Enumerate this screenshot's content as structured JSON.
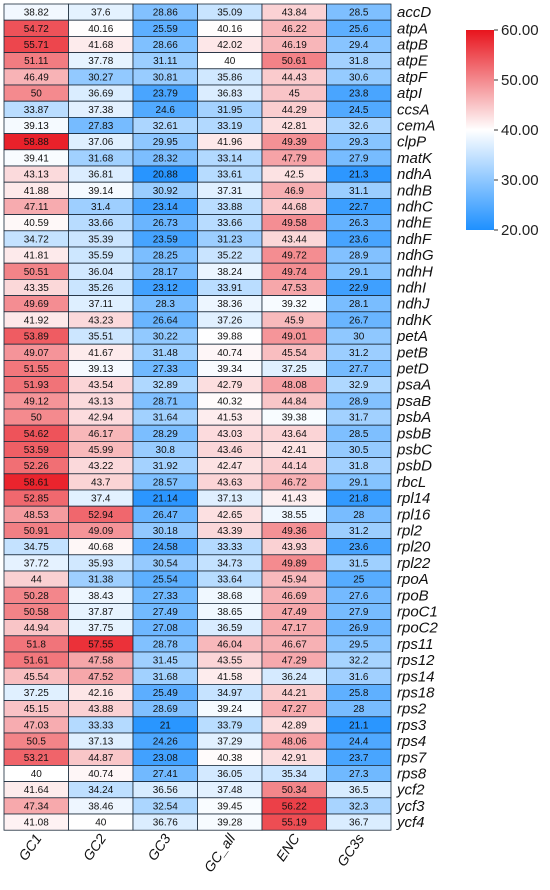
{
  "chart_data": {
    "type": "heatmap",
    "columns": [
      "GC1",
      "GC2",
      "GC3",
      "GC_all",
      "ENC",
      "GC3s"
    ],
    "rows": [
      "accD",
      "atpA",
      "atpB",
      "atpE",
      "atpF",
      "atpI",
      "ccsA",
      "cemA",
      "clpP",
      "matK",
      "ndhA",
      "ndhB",
      "ndhC",
      "ndhE",
      "ndhF",
      "ndhG",
      "ndhH",
      "ndhI",
      "ndhJ",
      "ndhK",
      "petA",
      "petB",
      "petD",
      "psaA",
      "psaB",
      "psbA",
      "psbB",
      "psbC",
      "psbD",
      "rbcL",
      "rpl14",
      "rpl16",
      "rpl2",
      "rpl20",
      "rpl22",
      "rpoA",
      "rpoB",
      "rpoC1",
      "rpoC2",
      "rps11",
      "rps12",
      "rps14",
      "rps18",
      "rps2",
      "rps3",
      "rps4",
      "rps7",
      "rps8",
      "ycf2",
      "ycf3",
      "ycf4"
    ],
    "values": [
      [
        "38.82",
        "37.6",
        "28.86",
        "35.09",
        "43.84",
        "28.5"
      ],
      [
        "54.72",
        "40.16",
        "25.59",
        "40.16",
        "46.22",
        "25.6"
      ],
      [
        "55.71",
        "41.68",
        "28.66",
        "42.02",
        "46.19",
        "29.4"
      ],
      [
        "51.11",
        "37.78",
        "31.11",
        "40",
        "50.61",
        "31.8"
      ],
      [
        "46.49",
        "30.27",
        "30.81",
        "35.86",
        "44.43",
        "30.6"
      ],
      [
        "50",
        "36.69",
        "23.79",
        "36.83",
        "45",
        "23.8"
      ],
      [
        "33.87",
        "37.38",
        "24.6",
        "31.95",
        "44.29",
        "24.5"
      ],
      [
        "39.13",
        "27.83",
        "32.61",
        "33.19",
        "42.81",
        "32.6"
      ],
      [
        "58.88",
        "37.06",
        "29.95",
        "41.96",
        "49.39",
        "29.3"
      ],
      [
        "39.41",
        "31.68",
        "28.32",
        "33.14",
        "47.79",
        "27.9"
      ],
      [
        "43.13",
        "36.81",
        "20.88",
        "33.61",
        "42.5",
        "21.3"
      ],
      [
        "41.88",
        "39.14",
        "30.92",
        "37.31",
        "46.9",
        "31.1"
      ],
      [
        "47.11",
        "31.4",
        "23.14",
        "33.88",
        "44.68",
        "22.7"
      ],
      [
        "40.59",
        "33.66",
        "26.73",
        "33.66",
        "49.58",
        "26.3"
      ],
      [
        "34.72",
        "35.39",
        "23.59",
        "31.23",
        "43.44",
        "23.6"
      ],
      [
        "41.81",
        "35.59",
        "28.25",
        "35.22",
        "49.72",
        "28.9"
      ],
      [
        "50.51",
        "36.04",
        "28.17",
        "38.24",
        "49.74",
        "29.1"
      ],
      [
        "43.35",
        "35.26",
        "23.12",
        "33.91",
        "47.53",
        "22.9"
      ],
      [
        "49.69",
        "37.11",
        "28.3",
        "38.36",
        "39.32",
        "28.1"
      ],
      [
        "41.92",
        "43.23",
        "26.64",
        "37.26",
        "45.9",
        "26.7"
      ],
      [
        "53.89",
        "35.51",
        "30.22",
        "39.88",
        "49.01",
        "30"
      ],
      [
        "49.07",
        "41.67",
        "31.48",
        "40.74",
        "45.54",
        "31.2"
      ],
      [
        "51.55",
        "39.13",
        "27.33",
        "39.34",
        "37.25",
        "27.7"
      ],
      [
        "51.93",
        "43.54",
        "32.89",
        "42.79",
        "48.08",
        "32.9"
      ],
      [
        "49.12",
        "43.13",
        "28.71",
        "40.32",
        "44.84",
        "28.9"
      ],
      [
        "50",
        "42.94",
        "31.64",
        "41.53",
        "39.38",
        "31.7"
      ],
      [
        "54.62",
        "46.17",
        "28.29",
        "43.03",
        "43.64",
        "28.5"
      ],
      [
        "53.59",
        "45.99",
        "30.8",
        "43.46",
        "42.41",
        "30.5"
      ],
      [
        "52.26",
        "43.22",
        "31.92",
        "42.47",
        "44.14",
        "31.8"
      ],
      [
        "58.61",
        "43.7",
        "28.57",
        "43.63",
        "46.72",
        "29.1"
      ],
      [
        "52.85",
        "37.4",
        "21.14",
        "37.13",
        "41.43",
        "21.8"
      ],
      [
        "48.53",
        "52.94",
        "26.47",
        "42.65",
        "38.55",
        "28"
      ],
      [
        "50.91",
        "49.09",
        "30.18",
        "43.39",
        "49.36",
        "31.2"
      ],
      [
        "34.75",
        "40.68",
        "24.58",
        "33.33",
        "43.93",
        "23.6"
      ],
      [
        "37.72",
        "35.93",
        "30.54",
        "34.73",
        "49.89",
        "31.5"
      ],
      [
        "44",
        "31.38",
        "25.54",
        "33.64",
        "45.94",
        "25"
      ],
      [
        "50.28",
        "38.43",
        "27.33",
        "38.68",
        "46.69",
        "27.6"
      ],
      [
        "50.58",
        "37.87",
        "27.49",
        "38.65",
        "47.49",
        "27.9"
      ],
      [
        "44.94",
        "37.75",
        "27.08",
        "36.59",
        "47.17",
        "26.9"
      ],
      [
        "51.8",
        "57.55",
        "28.78",
        "46.04",
        "46.67",
        "29.5"
      ],
      [
        "51.61",
        "47.58",
        "31.45",
        "43.55",
        "47.29",
        "32.2"
      ],
      [
        "45.54",
        "47.52",
        "31.68",
        "41.58",
        "36.24",
        "31.6"
      ],
      [
        "37.25",
        "42.16",
        "25.49",
        "34.97",
        "44.21",
        "25.8"
      ],
      [
        "45.15",
        "43.88",
        "28.69",
        "39.24",
        "47.27",
        "28"
      ],
      [
        "47.03",
        "33.33",
        "21",
        "33.79",
        "42.89",
        "21.1"
      ],
      [
        "50.5",
        "37.13",
        "24.26",
        "37.29",
        "48.06",
        "24.4"
      ],
      [
        "53.21",
        "44.87",
        "23.08",
        "40.38",
        "42.91",
        "23.7"
      ],
      [
        "40",
        "40.74",
        "27.41",
        "36.05",
        "35.34",
        "27.3"
      ],
      [
        "41.64",
        "34.24",
        "36.56",
        "37.48",
        "50.34",
        "36.5"
      ],
      [
        "47.34",
        "38.46",
        "32.54",
        "39.45",
        "56.22",
        "32.3"
      ],
      [
        "41.08",
        "40",
        "36.76",
        "39.28",
        "55.19",
        "36.7"
      ]
    ],
    "color_scale": {
      "min": 20,
      "mid": 40,
      "max": 60,
      "min_color": "#1e90ff",
      "mid_color": "#ffffff",
      "max_color": "#e8141d",
      "ticks": [
        "20.00",
        "30.00",
        "40.00",
        "50.00",
        "60.00"
      ]
    },
    "title": "",
    "xlabel": "",
    "ylabel": "",
    "legend_placement": "right"
  }
}
